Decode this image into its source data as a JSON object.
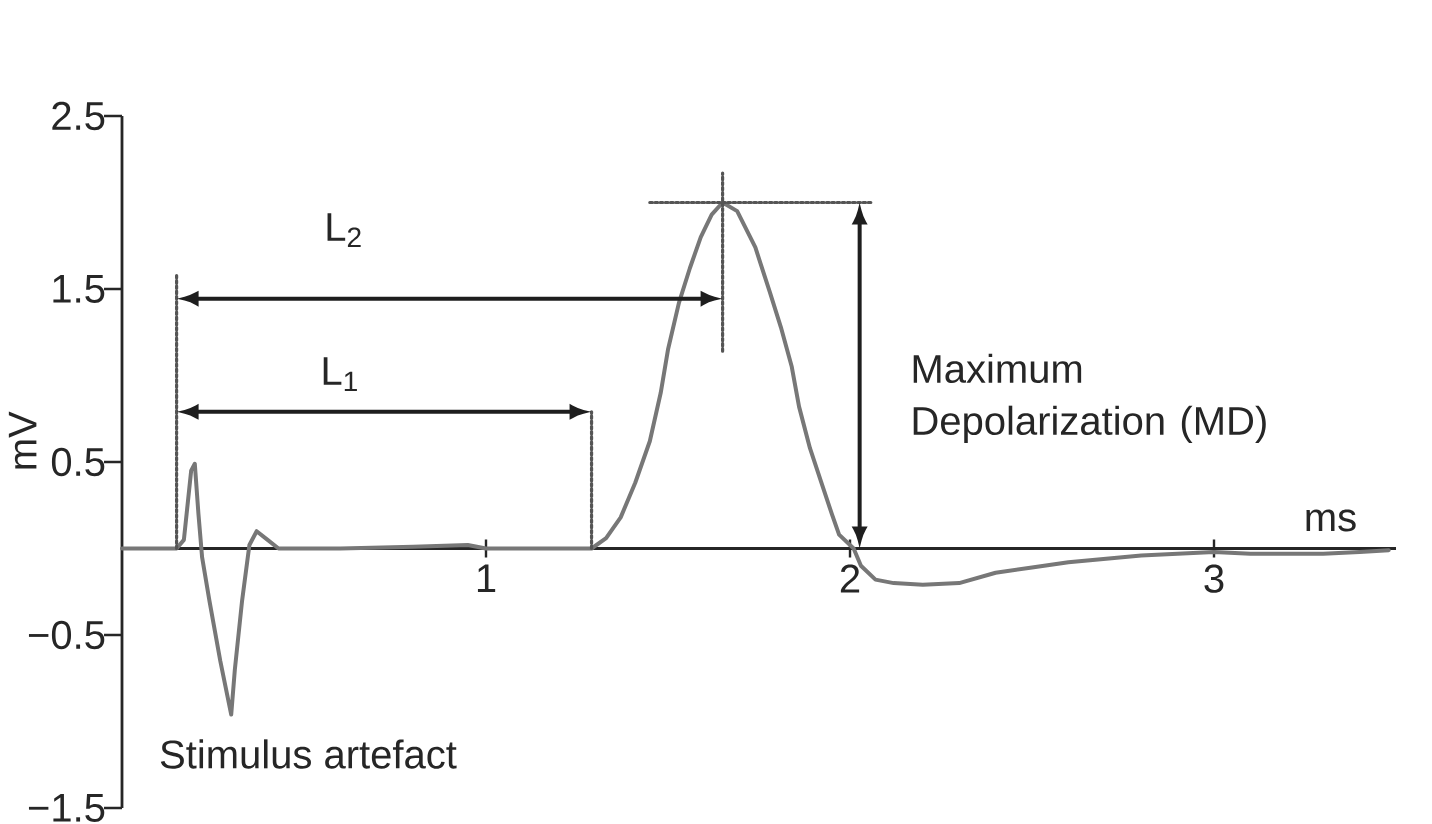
{
  "chart_data": {
    "type": "line",
    "xlabel": "ms",
    "ylabel": "mV",
    "xlim": [
      0,
      3.5
    ],
    "ylim": [
      -1.5,
      2.5
    ],
    "xticks": [
      1,
      2,
      3
    ],
    "yticks": [
      {
        "value": -1.5,
        "label": "−1.5"
      },
      {
        "value": -0.5,
        "label": "−0.5"
      },
      0.5,
      1.5,
      2.5
    ],
    "series": [
      {
        "color": "#777777",
        "x": [
          0,
          0.1,
          0.15,
          0.17,
          0.18,
          0.19,
          0.2,
          0.21,
          0.22,
          0.24,
          0.27,
          0.3,
          0.31,
          0.33,
          0.35,
          0.37,
          0.4,
          0.43,
          0.6,
          0.8,
          0.95,
          1.0,
          1.1,
          1.29,
          1.33,
          1.37,
          1.41,
          1.45,
          1.48,
          1.5,
          1.53,
          1.56,
          1.59,
          1.62,
          1.65,
          1.69,
          1.74,
          1.78,
          1.81,
          1.84,
          1.86,
          1.89,
          1.92,
          1.95,
          1.97,
          2.01,
          2.03,
          2.07,
          2.12,
          2.2,
          2.3,
          2.4,
          2.5,
          2.6,
          2.7,
          2.8,
          2.9,
          3.0,
          3.1,
          3.2,
          3.3,
          3.4,
          3.48
        ],
        "values": [
          0,
          0,
          0,
          0.05,
          0.25,
          0.45,
          0.49,
          0.2,
          -0.05,
          -0.3,
          -0.65,
          -0.96,
          -0.7,
          -0.3,
          0.02,
          0.1,
          0.05,
          0,
          0,
          0.01,
          0.02,
          0,
          0,
          0,
          0.06,
          0.18,
          0.38,
          0.62,
          0.9,
          1.15,
          1.42,
          1.62,
          1.8,
          1.93,
          2.0,
          1.95,
          1.74,
          1.48,
          1.28,
          1.05,
          0.82,
          0.58,
          0.39,
          0.2,
          0.08,
          0,
          -0.1,
          -0.18,
          -0.2,
          -0.21,
          -0.2,
          -0.14,
          -0.11,
          -0.08,
          -0.06,
          -0.04,
          -0.03,
          -0.02,
          -0.03,
          -0.03,
          -0.03,
          -0.02,
          -0.01
        ]
      },
      {
        "color": "#555555",
        "line_style": "dotted",
        "x": [
          0.15,
          0.15
        ],
        "values": [
          0,
          1.58
        ]
      },
      {
        "color": "#555555",
        "line_style": "dotted",
        "x": [
          1.29,
          1.29
        ],
        "values": [
          0,
          0.79
        ]
      },
      {
        "color": "#555555",
        "line_style": "dotted",
        "x": [
          1.65,
          1.65
        ],
        "values": [
          1.14,
          2.17
        ]
      },
      {
        "color": "#555555",
        "line_style": "dotted",
        "x": [
          1.45,
          2.06
        ],
        "values": [
          2.0,
          2.0
        ]
      }
    ],
    "annotations": [
      "L$_{2}$",
      "L$_{1}$",
      "Maximum Depolarization (MD)",
      "Stimulus artefact"
    ]
  }
}
